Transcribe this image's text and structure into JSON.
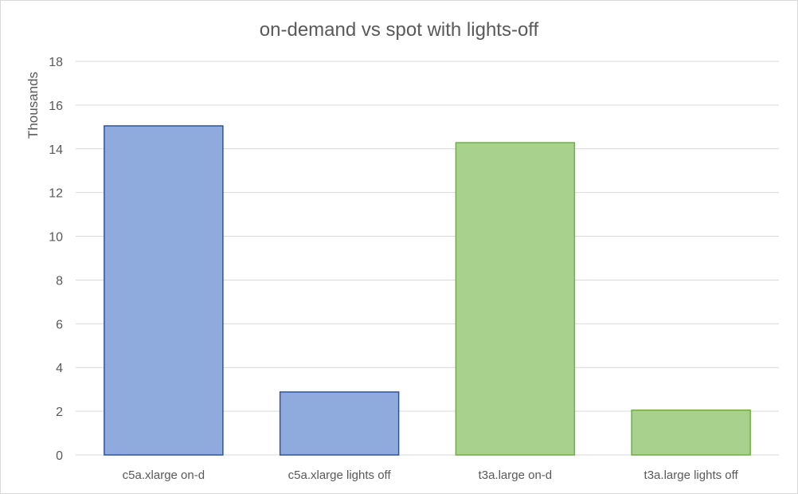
{
  "chart_data": {
    "type": "bar",
    "title": "on-demand vs spot with lights-off",
    "ylabel": "Thousands",
    "xlabel": "",
    "categories": [
      "c5a.xlarge on-d",
      "c5a.xlarge lights off",
      "t3a.large on-d",
      "t3a.large lights off"
    ],
    "values": [
      15.05,
      2.88,
      14.28,
      2.05
    ],
    "bar_fill": [
      "#8faadc",
      "#8faadc",
      "#a9d18e",
      "#a9d18e"
    ],
    "bar_stroke": [
      "#2f5597",
      "#2f5597",
      "#70ad47",
      "#70ad47"
    ],
    "ylim": [
      0,
      18
    ],
    "yticks": [
      "0",
      "2",
      "4",
      "6",
      "8",
      "10",
      "12",
      "14",
      "16",
      "18"
    ],
    "grid": true,
    "gridline_color": "#d9d9d9"
  }
}
